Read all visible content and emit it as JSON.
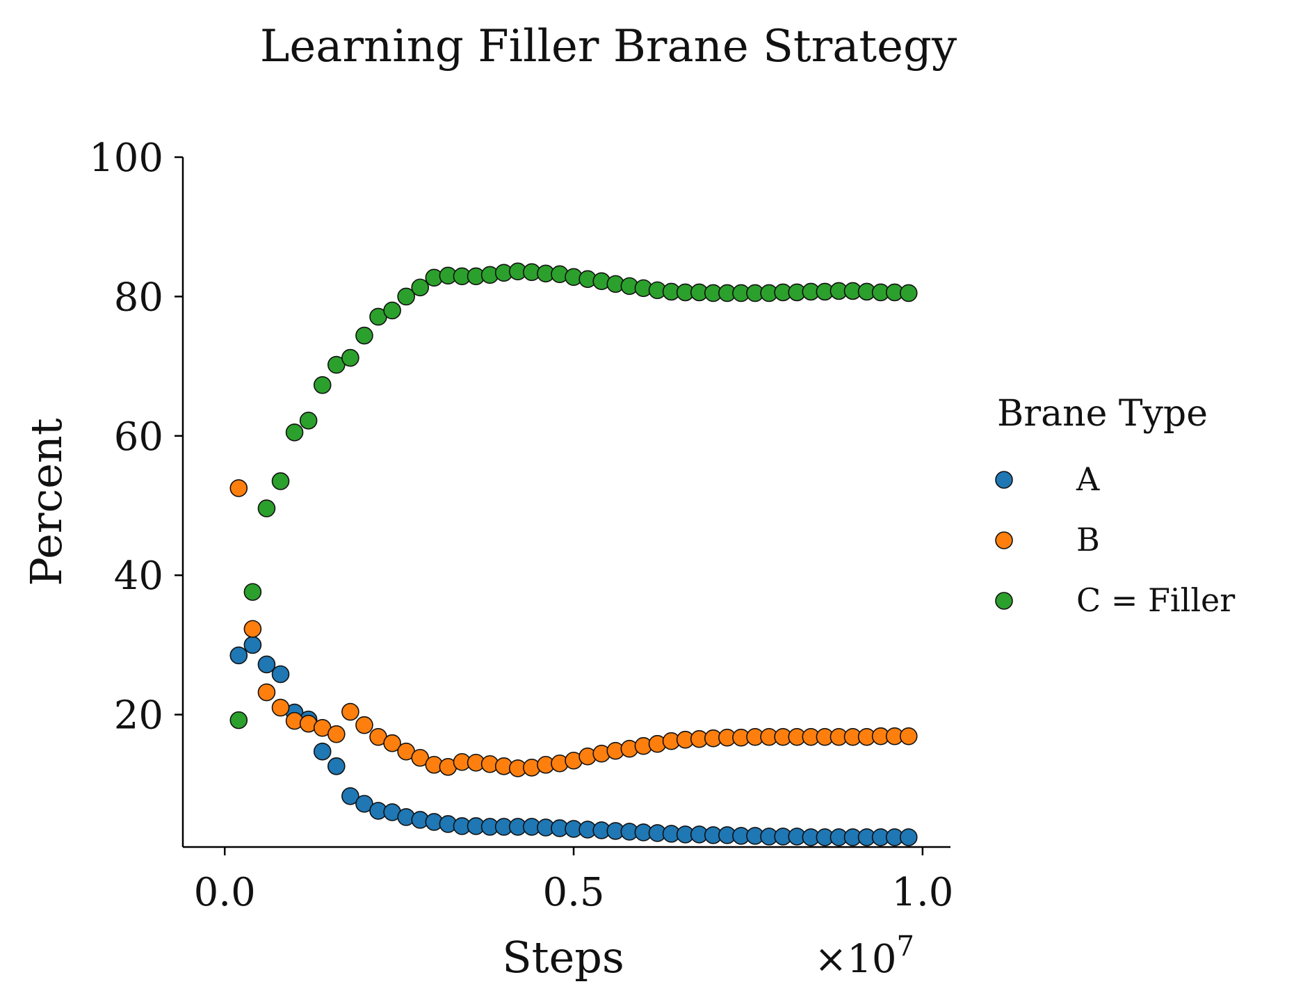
{
  "chart_data": {
    "type": "scatter",
    "title": "Learning Filler Brane Strategy",
    "xlabel": "Steps",
    "ylabel": "Percent",
    "x_multiplier_label": "×10",
    "x_multiplier_exp": "7",
    "xlim": [
      -0.06,
      1.04
    ],
    "ylim": [
      1,
      100
    ],
    "x_ticks": [
      0.0,
      0.5,
      1.0
    ],
    "x_tick_labels": [
      "0.0",
      "0.5",
      "1.0"
    ],
    "y_ticks": [
      20,
      40,
      60,
      80,
      100
    ],
    "y_tick_labels": [
      "20",
      "40",
      "60",
      "80",
      "100"
    ],
    "grid": false,
    "legend": {
      "title": "Brane Type",
      "placement": "right"
    },
    "x": [
      0.02,
      0.04,
      0.06,
      0.08,
      0.1,
      0.12,
      0.14,
      0.16,
      0.18,
      0.2,
      0.22,
      0.24,
      0.26,
      0.28,
      0.3,
      0.32,
      0.34,
      0.36,
      0.38,
      0.4,
      0.42,
      0.44,
      0.46,
      0.48,
      0.5,
      0.52,
      0.54,
      0.56,
      0.58,
      0.6,
      0.62,
      0.64,
      0.66,
      0.68,
      0.7,
      0.72,
      0.74,
      0.76,
      0.78,
      0.8,
      0.82,
      0.84,
      0.86,
      0.88,
      0.9,
      0.92,
      0.94,
      0.96,
      0.98
    ],
    "series": [
      {
        "name": "A",
        "color": "#1f77b4",
        "values": [
          28.5,
          30.0,
          27.2,
          25.8,
          20.3,
          19.3,
          14.7,
          12.6,
          8.3,
          7.2,
          6.2,
          6.0,
          5.3,
          4.9,
          4.6,
          4.3,
          4.0,
          4.0,
          3.9,
          3.9,
          3.9,
          3.9,
          3.8,
          3.7,
          3.6,
          3.5,
          3.4,
          3.3,
          3.2,
          3.1,
          3.0,
          2.9,
          2.8,
          2.8,
          2.7,
          2.7,
          2.6,
          2.6,
          2.5,
          2.5,
          2.5,
          2.4,
          2.4,
          2.4,
          2.4,
          2.4,
          2.4,
          2.4,
          2.4
        ]
      },
      {
        "name": "B",
        "color": "#ff7f0e",
        "values": [
          52.5,
          32.3,
          23.2,
          21.0,
          19.1,
          18.7,
          18.1,
          17.2,
          20.4,
          18.5,
          16.8,
          15.9,
          14.7,
          13.8,
          12.8,
          12.5,
          13.2,
          13.1,
          12.9,
          12.6,
          12.3,
          12.4,
          12.8,
          13.0,
          13.4,
          14.0,
          14.4,
          14.8,
          15.1,
          15.5,
          15.8,
          16.2,
          16.4,
          16.5,
          16.6,
          16.7,
          16.7,
          16.8,
          16.8,
          16.8,
          16.8,
          16.8,
          16.8,
          16.8,
          16.8,
          16.8,
          16.9,
          16.9,
          16.9
        ]
      },
      {
        "name": "C  =  Filler",
        "color": "#2ca02c",
        "values": [
          19.2,
          37.6,
          49.6,
          53.5,
          60.5,
          62.2,
          67.3,
          70.2,
          71.2,
          74.4,
          77.1,
          78.0,
          80.0,
          81.3,
          82.7,
          83.0,
          82.9,
          82.9,
          83.1,
          83.4,
          83.6,
          83.5,
          83.3,
          83.2,
          82.8,
          82.5,
          82.2,
          81.8,
          81.5,
          81.2,
          80.9,
          80.7,
          80.6,
          80.6,
          80.5,
          80.5,
          80.5,
          80.5,
          80.5,
          80.6,
          80.6,
          80.7,
          80.7,
          80.8,
          80.8,
          80.7,
          80.6,
          80.6,
          80.5
        ]
      }
    ]
  }
}
